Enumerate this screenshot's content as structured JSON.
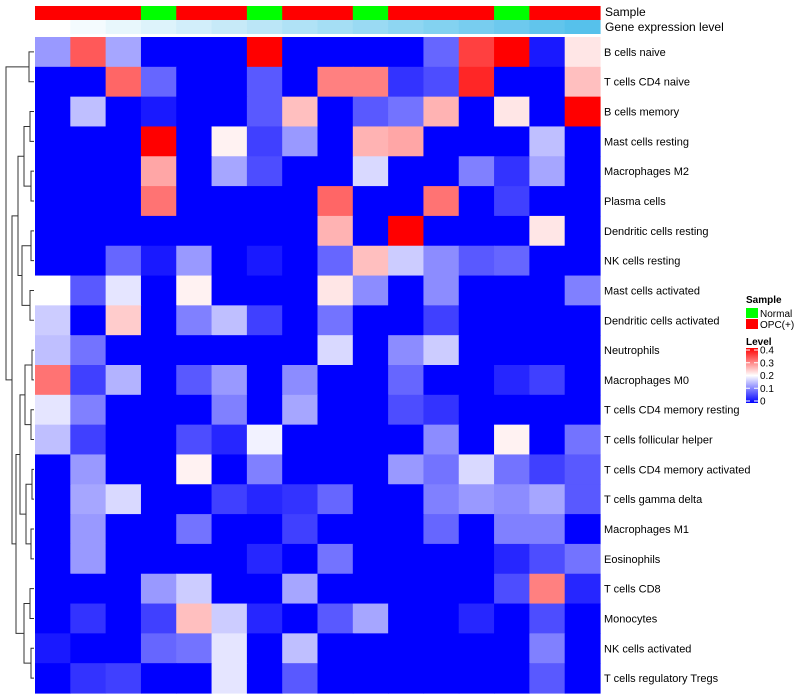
{
  "chart_data": {
    "type": "heatmap",
    "annotations": {
      "sample_label": "Sample",
      "level_label": "Gene expression level",
      "sample_groups": [
        "OPC(+)",
        "OPC(+)",
        "OPC(+)",
        "Normal",
        "OPC(+)",
        "OPC(+)",
        "Normal",
        "OPC(+)",
        "OPC(+)",
        "Normal",
        "OPC(+)",
        "OPC(+)",
        "OPC(+)",
        "Normal",
        "OPC(+)",
        "OPC(+)"
      ],
      "expression_levels": [
        0.02,
        0.04,
        0.06,
        0.08,
        0.1,
        0.12,
        0.14,
        0.16,
        0.18,
        0.2,
        0.22,
        0.24,
        0.26,
        0.28,
        0.3,
        0.32
      ]
    },
    "rows": [
      "B cells naive",
      "T cells CD4 naive",
      "B cells memory",
      "Mast cells resting",
      "Macrophages M2",
      "Plasma cells",
      "Dendritic cells resting",
      "NK cells resting",
      "Mast cells activated",
      "Dendritic cells activated",
      "Neutrophils",
      "Macrophages M0",
      "T cells CD4 memory resting",
      "T cells follicular helper",
      "T cells CD4 memory activated",
      "T cells gamma delta",
      "Macrophages M1",
      "Eosinophils",
      "T cells CD8",
      "Monocytes",
      "NK cells activated",
      "T cells regulatory  Tregs"
    ],
    "values": [
      [
        0.12,
        0.33,
        0.13,
        0,
        0,
        0,
        0.4,
        0,
        0,
        0,
        0,
        0.08,
        0.35,
        0.4,
        0.02,
        0.22
      ],
      [
        0,
        0,
        0.32,
        0.08,
        0,
        0,
        0.07,
        0,
        0.3,
        0.3,
        0.04,
        0.06,
        0.37,
        0,
        0,
        0.25
      ],
      [
        0,
        0.15,
        0,
        0.02,
        0,
        0,
        0.07,
        0.25,
        0,
        0.07,
        0.09,
        0.26,
        0,
        0.22,
        0,
        0.4
      ],
      [
        0,
        0,
        0,
        0.4,
        0,
        0.21,
        0.05,
        0.12,
        0,
        0.26,
        0.27,
        0,
        0,
        0,
        0.15,
        0
      ],
      [
        0,
        0,
        0,
        0.27,
        0,
        0.13,
        0.06,
        0,
        0,
        0.17,
        0,
        0,
        0.1,
        0.04,
        0.13,
        0
      ],
      [
        0,
        0,
        0,
        0.31,
        0,
        0,
        0,
        0,
        0.32,
        0,
        0,
        0.31,
        0,
        0.05,
        0,
        0
      ],
      [
        0,
        0,
        0,
        0,
        0,
        0,
        0,
        0,
        0.26,
        0,
        0.4,
        0,
        0,
        0,
        0.22,
        0
      ],
      [
        0,
        0,
        0.08,
        0.02,
        0.12,
        0,
        0.02,
        0,
        0.08,
        0.25,
        0.16,
        0.11,
        0.07,
        0.08,
        0,
        0
      ],
      [
        0.2,
        0.07,
        0.18,
        0,
        0.21,
        0,
        0,
        0,
        0.22,
        0.11,
        0,
        0.11,
        0,
        0,
        0,
        0.1
      ],
      [
        0.16,
        0,
        0.24,
        0,
        0.1,
        0.15,
        0.05,
        0,
        0.09,
        0,
        0,
        0.05,
        0,
        0,
        0,
        0
      ],
      [
        0.15,
        0.09,
        0,
        0,
        0,
        0,
        0,
        0,
        0.17,
        0,
        0.11,
        0.16,
        0,
        0,
        0,
        0
      ],
      [
        0.31,
        0.05,
        0.14,
        0,
        0.07,
        0.12,
        0,
        0.11,
        0,
        0,
        0.08,
        0,
        0,
        0.03,
        0.05,
        0
      ],
      [
        0.18,
        0.1,
        0,
        0,
        0,
        0.1,
        0,
        0.13,
        0,
        0,
        0.06,
        0.04,
        0,
        0,
        0,
        0
      ],
      [
        0.15,
        0.05,
        0,
        0,
        0.06,
        0.03,
        0.19,
        0,
        0,
        0,
        0,
        0.11,
        0,
        0.21,
        0,
        0.09
      ],
      [
        0,
        0.12,
        0,
        0,
        0.21,
        0,
        0.1,
        0,
        0,
        0,
        0.12,
        0.09,
        0.17,
        0.09,
        0.05,
        0.07
      ],
      [
        0,
        0.13,
        0.17,
        0,
        0,
        0.05,
        0.03,
        0.04,
        0.08,
        0,
        0,
        0.1,
        0.12,
        0.11,
        0.13,
        0.07
      ],
      [
        0,
        0.12,
        0,
        0,
        0.09,
        0,
        0,
        0.05,
        0,
        0,
        0,
        0.08,
        0,
        0.1,
        0.1,
        0
      ],
      [
        0,
        0.12,
        0,
        0,
        0,
        0,
        0.03,
        0,
        0.09,
        0,
        0,
        0,
        0,
        0.03,
        0.06,
        0.09
      ],
      [
        0,
        0,
        0,
        0.12,
        0.16,
        0,
        0,
        0.13,
        0,
        0,
        0,
        0,
        0,
        0.06,
        0.3,
        0.03
      ],
      [
        0,
        0.04,
        0,
        0.05,
        0.25,
        0.16,
        0.03,
        0,
        0.07,
        0.13,
        0,
        0,
        0.03,
        0,
        0.06,
        0
      ],
      [
        0.02,
        0,
        0,
        0.08,
        0.09,
        0.18,
        0,
        0.15,
        0,
        0,
        0,
        0,
        0,
        0,
        0.1,
        0
      ],
      [
        0,
        0.04,
        0.05,
        0,
        0,
        0.18,
        0,
        0.07,
        0,
        0,
        0,
        0,
        0,
        0,
        0.07,
        0
      ]
    ],
    "colorscale": {
      "title": "Level",
      "ticks": [
        "0.4",
        "0.3",
        "0.2",
        "0.1",
        "0"
      ],
      "low": "#0000ff",
      "mid": "#ffffff",
      "high": "#ff0000",
      "min": 0,
      "mid_value": 0.2,
      "max": 0.4
    },
    "sample_legend": {
      "title": "Sample",
      "items": [
        {
          "label": "Normal",
          "color": "#00ff00"
        },
        {
          "label": "OPC(+)",
          "color": "#ff0000"
        }
      ]
    },
    "level_annotation_colors": {
      "low": "#ffffff",
      "high": "#56c1eb"
    }
  }
}
